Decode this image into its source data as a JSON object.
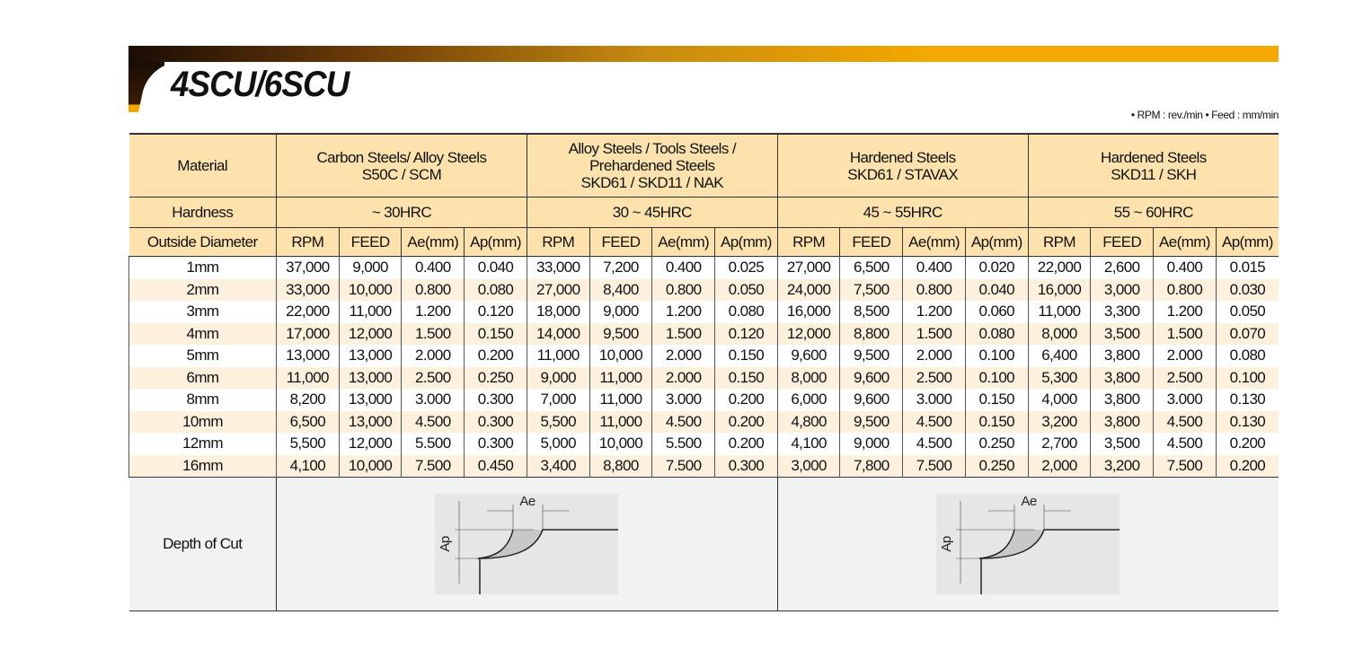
{
  "title": "4SCU/6SCU",
  "units_note": "• RPM : rev./min  • Feed : mm/min",
  "header": {
    "material_label": "Material",
    "hardness_label": "Hardness",
    "od_label": "Outside Diameter",
    "groups": [
      {
        "material": [
          "Carbon Steels/ Alloy Steels",
          "S50C / SCM"
        ],
        "hardness": "~ 30HRC"
      },
      {
        "material": [
          "Alloy Steels / Tools Steels /",
          "Prehardened Steels",
          "SKD61 / SKD11 / NAK"
        ],
        "hardness": "30 ~ 45HRC"
      },
      {
        "material": [
          "Hardened Steels",
          "SKD61 / STAVAX"
        ],
        "hardness": "45 ~ 55HRC"
      },
      {
        "material": [
          "Hardened Steels",
          "SKD11 / SKH"
        ],
        "hardness": "55 ~ 60HRC"
      }
    ],
    "subcols": [
      "RPM",
      "FEED",
      "Ae(mm)",
      "Ap(mm)"
    ]
  },
  "rows": [
    {
      "od": "1mm",
      "v": [
        "37,000",
        "9,000",
        "0.400",
        "0.040",
        "33,000",
        "7,200",
        "0.400",
        "0.025",
        "27,000",
        "6,500",
        "0.400",
        "0.020",
        "22,000",
        "2,600",
        "0.400",
        "0.015"
      ]
    },
    {
      "od": "2mm",
      "v": [
        "33,000",
        "10,000",
        "0.800",
        "0.080",
        "27,000",
        "8,400",
        "0.800",
        "0.050",
        "24,000",
        "7,500",
        "0.800",
        "0.040",
        "16,000",
        "3,000",
        "0.800",
        "0.030"
      ]
    },
    {
      "od": "3mm",
      "v": [
        "22,000",
        "11,000",
        "1.200",
        "0.120",
        "18,000",
        "9,000",
        "1.200",
        "0.080",
        "16,000",
        "8,500",
        "1.200",
        "0.060",
        "11,000",
        "3,300",
        "1.200",
        "0.050"
      ]
    },
    {
      "od": "4mm",
      "v": [
        "17,000",
        "12,000",
        "1.500",
        "0.150",
        "14,000",
        "9,500",
        "1.500",
        "0.120",
        "12,000",
        "8,800",
        "1.500",
        "0.080",
        "8,000",
        "3,500",
        "1.500",
        "0.070"
      ]
    },
    {
      "od": "5mm",
      "v": [
        "13,000",
        "13,000",
        "2.000",
        "0.200",
        "11,000",
        "10,000",
        "2.000",
        "0.150",
        "9,600",
        "9,500",
        "2.000",
        "0.100",
        "6,400",
        "3,800",
        "2.000",
        "0.080"
      ]
    },
    {
      "od": "6mm",
      "v": [
        "11,000",
        "13,000",
        "2.500",
        "0.250",
        "9,000",
        "11,000",
        "2.000",
        "0.150",
        "8,000",
        "9,600",
        "2.500",
        "0.100",
        "5,300",
        "3,800",
        "2.500",
        "0.100"
      ]
    },
    {
      "od": "8mm",
      "v": [
        "8,200",
        "13,000",
        "3.000",
        "0.300",
        "7,000",
        "11,000",
        "3.000",
        "0.200",
        "6,000",
        "9,600",
        "3.000",
        "0.150",
        "4,000",
        "3,800",
        "3.000",
        "0.130"
      ]
    },
    {
      "od": "10mm",
      "v": [
        "6,500",
        "13,000",
        "4.500",
        "0.300",
        "5,500",
        "11,000",
        "4.500",
        "0.200",
        "4,800",
        "9,500",
        "4.500",
        "0.150",
        "3,200",
        "3,800",
        "4.500",
        "0.130"
      ]
    },
    {
      "od": "12mm",
      "v": [
        "5,500",
        "12,000",
        "5.500",
        "0.300",
        "5,000",
        "10,000",
        "5.500",
        "0.200",
        "4,100",
        "9,000",
        "4.500",
        "0.250",
        "2,700",
        "3,500",
        "4.500",
        "0.200"
      ]
    },
    {
      "od": "16mm",
      "v": [
        "4,100",
        "10,000",
        "7.500",
        "0.450",
        "3,400",
        "8,800",
        "7.500",
        "0.300",
        "3,000",
        "7,800",
        "7.500",
        "0.250",
        "2,000",
        "3,200",
        "7.500",
        "0.200"
      ]
    }
  ],
  "depth_of_cut": {
    "label": "Depth of Cut",
    "ae_label": "Ae",
    "ap_label": "Ap"
  }
}
